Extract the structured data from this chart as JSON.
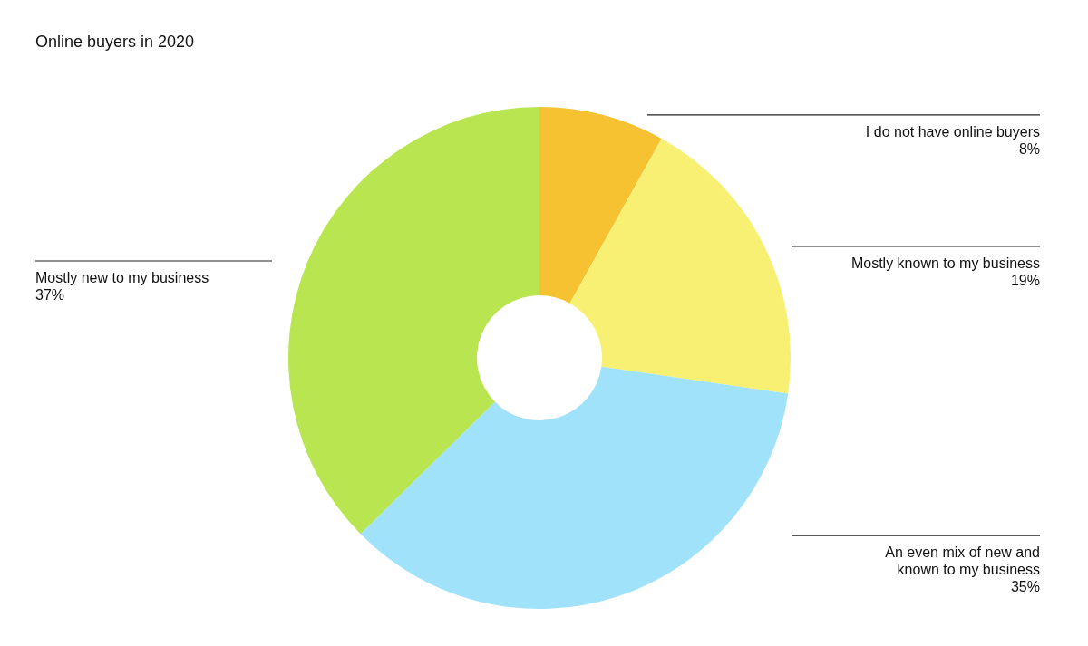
{
  "chart_data": {
    "type": "donut",
    "title": "Online buyers in 2020",
    "categories": [
      "I do not have online buyers",
      "Mostly known to my business",
      "An even mix of new and known to my business",
      "Mostly new to my business"
    ],
    "values": [
      8,
      19,
      35,
      37
    ],
    "value_labels": [
      "8%",
      "19%",
      "35%",
      "37%"
    ],
    "colors": [
      "#f6c232",
      "#f7f073",
      "#a0e2fa",
      "#b8e550"
    ]
  }
}
